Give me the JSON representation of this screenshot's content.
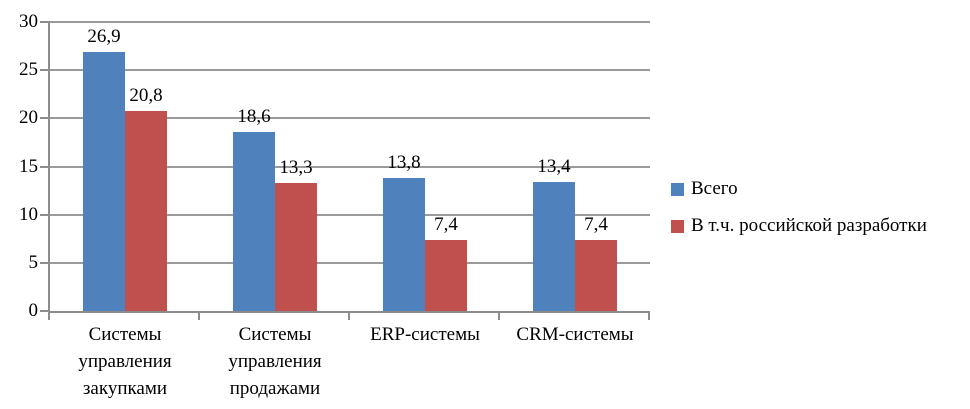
{
  "chart_data": {
    "type": "bar",
    "title": "",
    "categories": [
      "Системы управления закупками",
      "Системы управления продажами",
      "ERP-системы",
      "CRM-системы"
    ],
    "series": [
      {
        "name": "Всего",
        "color": "#4F81BD",
        "values": [
          26.9,
          18.6,
          13.8,
          13.4
        ],
        "labels": [
          "26,9",
          "18,6",
          "13,8",
          "13,4"
        ]
      },
      {
        "name": "В т.ч. российской разработки",
        "color": "#C0504D",
        "values": [
          20.8,
          13.3,
          7.4,
          7.4
        ],
        "labels": [
          "20,8",
          "13,3",
          "7,4",
          "7,4"
        ]
      }
    ],
    "ylim": [
      0,
      30
    ],
    "ytick_step": 5,
    "yticks": [
      "0",
      "5",
      "10",
      "15",
      "20",
      "25",
      "30"
    ],
    "grid": "horizontal",
    "legend_position": "right",
    "colors": {
      "axis": "#8C8C8C",
      "gridline": "#9A9A9A",
      "text": "#000000",
      "background": "#FFFFFF"
    }
  }
}
